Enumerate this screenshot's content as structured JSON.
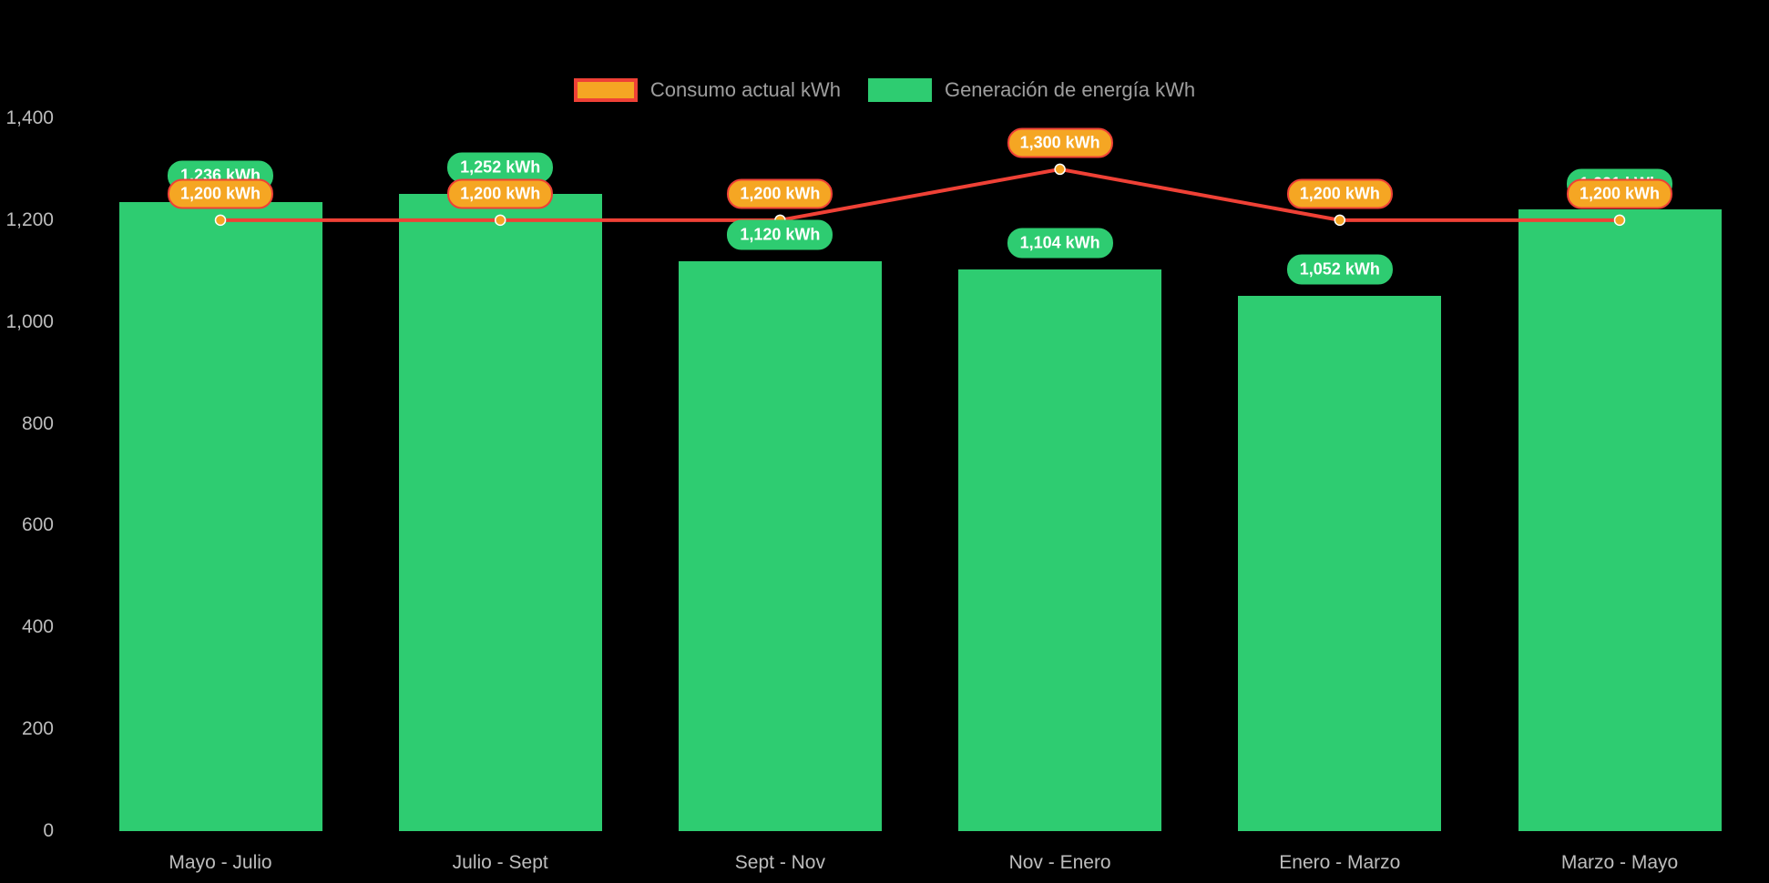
{
  "page": {
    "background": "#000000"
  },
  "legend": [
    {
      "label": "Consumo actual kWh",
      "swatch_fill": "#f5a623",
      "swatch_border": "#ef4136"
    },
    {
      "label": "Generación de energía kWh",
      "swatch_fill": "#2ecc71",
      "swatch_border": "#2ecc71"
    }
  ],
  "chart_data": {
    "type": "bar",
    "title": "",
    "xlabel": "",
    "ylabel": "",
    "categories": [
      "Mayo - Julio",
      "Julio - Sept",
      "Sept - Nov",
      "Nov - Enero",
      "Enero - Marzo",
      "Marzo - Mayo"
    ],
    "series": [
      {
        "name": "Generación de energía kWh",
        "type": "bar",
        "color": "#2ecc71",
        "values": [
          1236,
          1252,
          1120,
          1104,
          1052,
          1221
        ],
        "labels": [
          "1.236 kWh",
          "1,252 kWh",
          "1,120 kWh",
          "1,104 kWh",
          "1,052 kWh",
          "1,221 kWh"
        ]
      },
      {
        "name": "Consumo actual kWh",
        "type": "line",
        "color": "#ef4136",
        "point_color": "#f5a623",
        "values": [
          1200,
          1200,
          1200,
          1300,
          1200,
          1200
        ],
        "labels": [
          "1,200 kWh",
          "1,200 kWh",
          "1,200 kWh",
          "1,300 kWh",
          "1,200 kWh",
          "1,200 kWh"
        ]
      }
    ],
    "y_ticks": [
      "0",
      "200",
      "400",
      "600",
      "800",
      "1,000",
      "1,200",
      "1,400"
    ],
    "y_tick_values": [
      0,
      200,
      400,
      600,
      800,
      1000,
      1200,
      1400
    ],
    "ylim": [
      0,
      1400
    ],
    "grid": false,
    "legend_position": "top"
  }
}
